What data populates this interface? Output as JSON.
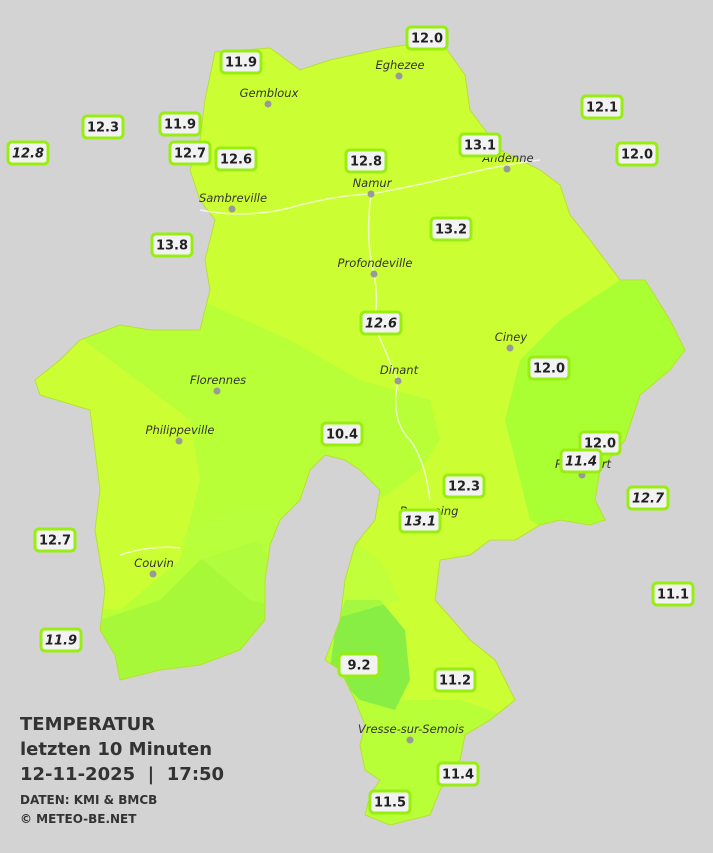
{
  "title": {
    "line1": "TEMPERATUR",
    "line2": "letzten 10 Minuten",
    "line3": "12-11-2025  |  17:50",
    "source": "DATEN: KMI & BMCB",
    "copyright": "© METEO-BE.NET"
  },
  "cities": [
    "Eghezee",
    "Gembloux",
    "Andenne",
    "Namur",
    "Sambreville",
    "Profondeville",
    "Ciney",
    "Dinant",
    "Florennes",
    "Philippeville",
    "Couvin",
    "Beauraing",
    "Rochefort",
    "Vresse-sur-Semois"
  ],
  "stations": [
    {
      "label": "12.0",
      "italic": false
    },
    {
      "label": "11.9",
      "italic": false
    },
    {
      "label": "12.3",
      "italic": false
    },
    {
      "label": "11.9",
      "italic": false
    },
    {
      "label": "12.8",
      "italic": true
    },
    {
      "label": "12.7",
      "italic": false
    },
    {
      "label": "12.6",
      "italic": false
    },
    {
      "label": "12.8",
      "italic": false
    },
    {
      "label": "13.1",
      "italic": false
    },
    {
      "label": "12.1",
      "italic": false
    },
    {
      "label": "12.0",
      "italic": false
    },
    {
      "label": "13.8",
      "italic": false
    },
    {
      "label": "13.2",
      "italic": false
    },
    {
      "label": "12.6",
      "italic": true
    },
    {
      "label": "12.0",
      "italic": false
    },
    {
      "label": "10.4",
      "italic": false
    },
    {
      "label": "12.0",
      "italic": false
    },
    {
      "label": "11.4",
      "italic": true
    },
    {
      "label": "12.3",
      "italic": false
    },
    {
      "label": "12.7",
      "italic": true
    },
    {
      "label": "13.1",
      "italic": true
    },
    {
      "label": "12.7",
      "italic": false
    },
    {
      "label": "11.1",
      "italic": false
    },
    {
      "label": "11.9",
      "italic": true
    },
    {
      "label": "9.2",
      "italic": false
    },
    {
      "label": "11.2",
      "italic": false
    },
    {
      "label": "11.4",
      "italic": false
    },
    {
      "label": "11.5",
      "italic": false
    }
  ]
}
